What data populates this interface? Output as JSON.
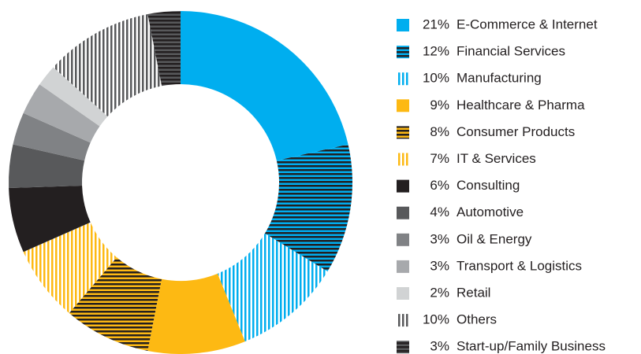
{
  "chart_data": {
    "type": "donut",
    "categories": [
      "E-Commerce & Internet",
      "Financial Services",
      "Manufacturing",
      "Healthcare & Pharma",
      "Consumer Products",
      "IT & Services",
      "Consulting",
      "Automotive",
      "Oil & Energy",
      "Transport & Logistics",
      "Retail",
      "Others",
      "Start-up/Family Business"
    ],
    "values": [
      21,
      12,
      10,
      9,
      8,
      7,
      6,
      4,
      3,
      3,
      2,
      10,
      3
    ],
    "value_labels": [
      "21%",
      "12%",
      "10%",
      "9%",
      "8%",
      "7%",
      "6%",
      "4%",
      "3%",
      "3%",
      "2%",
      "10%",
      "3%"
    ],
    "colors": [
      "#00aeef",
      "#00aeef",
      "#00aeef",
      "#fdb913",
      "#fdb913",
      "#fdb913",
      "#231f20",
      "#58595b",
      "#808285",
      "#a7a9ac",
      "#d1d3d4",
      "#58595b",
      "#58595b"
    ],
    "patterns": [
      "solid",
      "horizontal",
      "vertical",
      "solid",
      "horizontal",
      "vertical",
      "solid",
      "solid",
      "solid",
      "solid",
      "solid",
      "vertical",
      "horizontal"
    ]
  }
}
